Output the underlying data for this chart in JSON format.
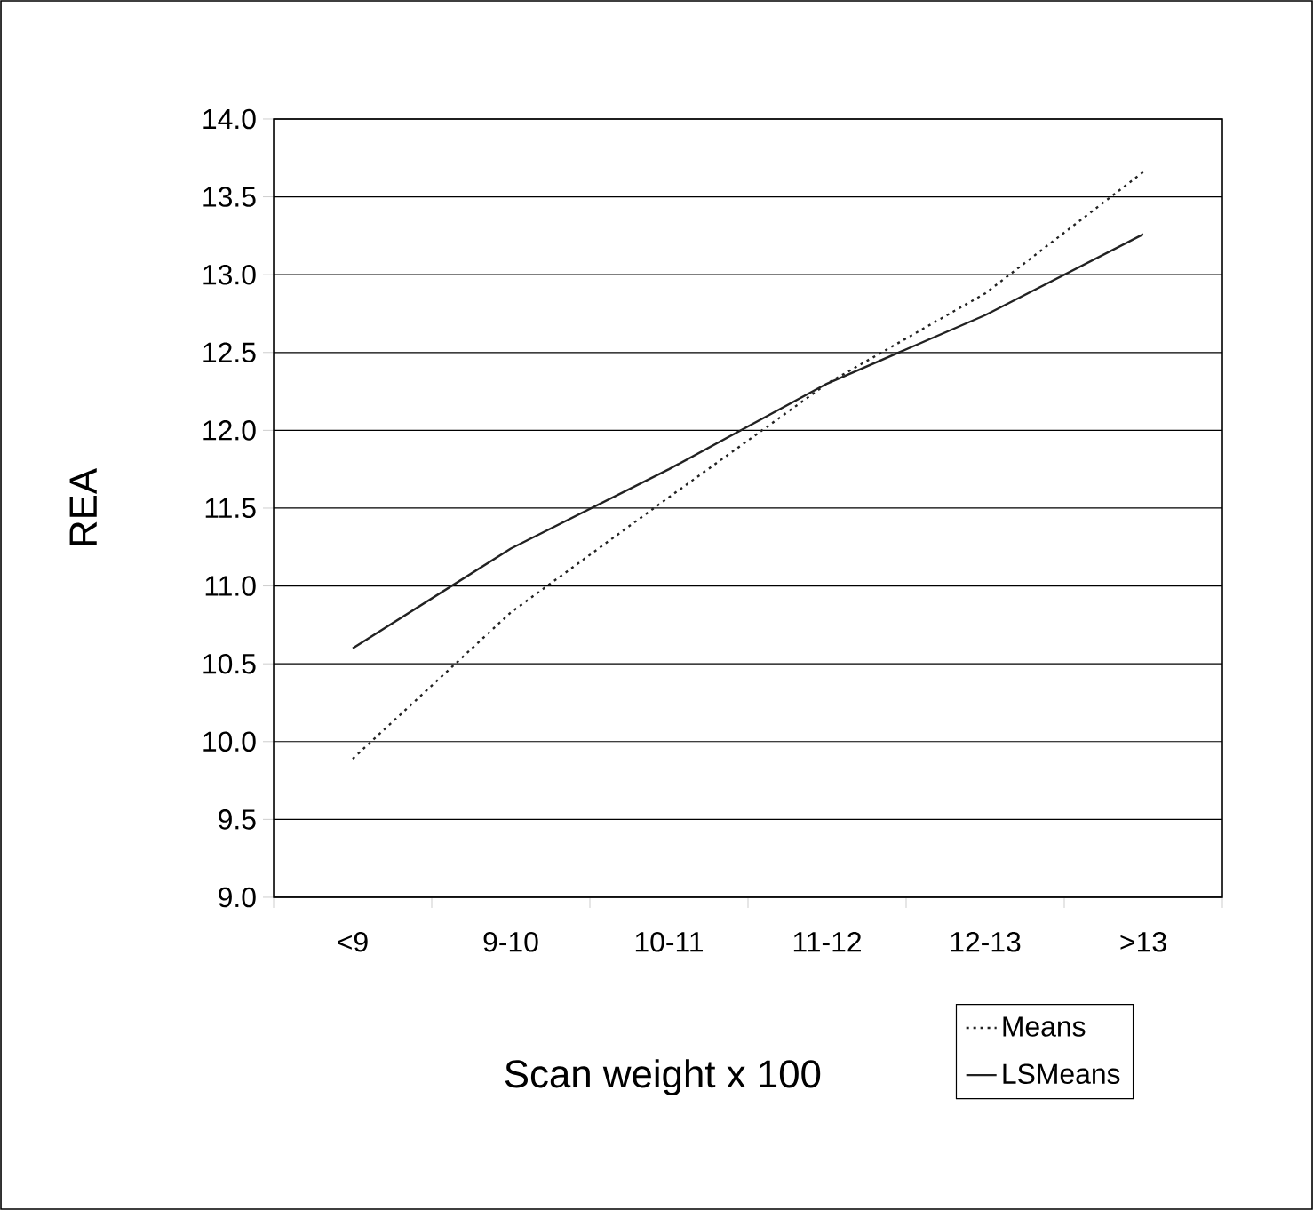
{
  "chart_data": {
    "type": "line",
    "xlabel": "Scan weight x 100",
    "ylabel": "REA",
    "categories": [
      "<9",
      "9-10",
      "10-11",
      "11-12",
      "12-13",
      ">13"
    ],
    "series": [
      {
        "name": "Means",
        "color": "#222222",
        "line_style": "dotted",
        "values": [
          9.89,
          10.83,
          11.57,
          12.3,
          12.88,
          13.66
        ]
      },
      {
        "name": "LSMeans",
        "color": "#222222",
        "line_style": "solid",
        "values": [
          10.6,
          11.24,
          11.75,
          12.3,
          12.74,
          13.26
        ]
      }
    ],
    "ylim": [
      9.0,
      14.0
    ],
    "yticks": [
      {
        "value": 9.0,
        "label": "9.0"
      },
      {
        "value": 9.5,
        "label": "9.5"
      },
      {
        "value": 10.0,
        "label": "10.0"
      },
      {
        "value": 10.5,
        "label": "10.5"
      },
      {
        "value": 11.0,
        "label": "11.0"
      },
      {
        "value": 11.5,
        "label": "11.5"
      },
      {
        "value": 12.0,
        "label": "12.0"
      },
      {
        "value": 12.5,
        "label": "12.5"
      },
      {
        "value": 13.0,
        "label": "13.0"
      },
      {
        "value": 13.5,
        "label": "13.5"
      },
      {
        "value": 14.0,
        "label": "14.0"
      }
    ],
    "grid": "y",
    "legend": "bottom right",
    "marker": "none"
  }
}
